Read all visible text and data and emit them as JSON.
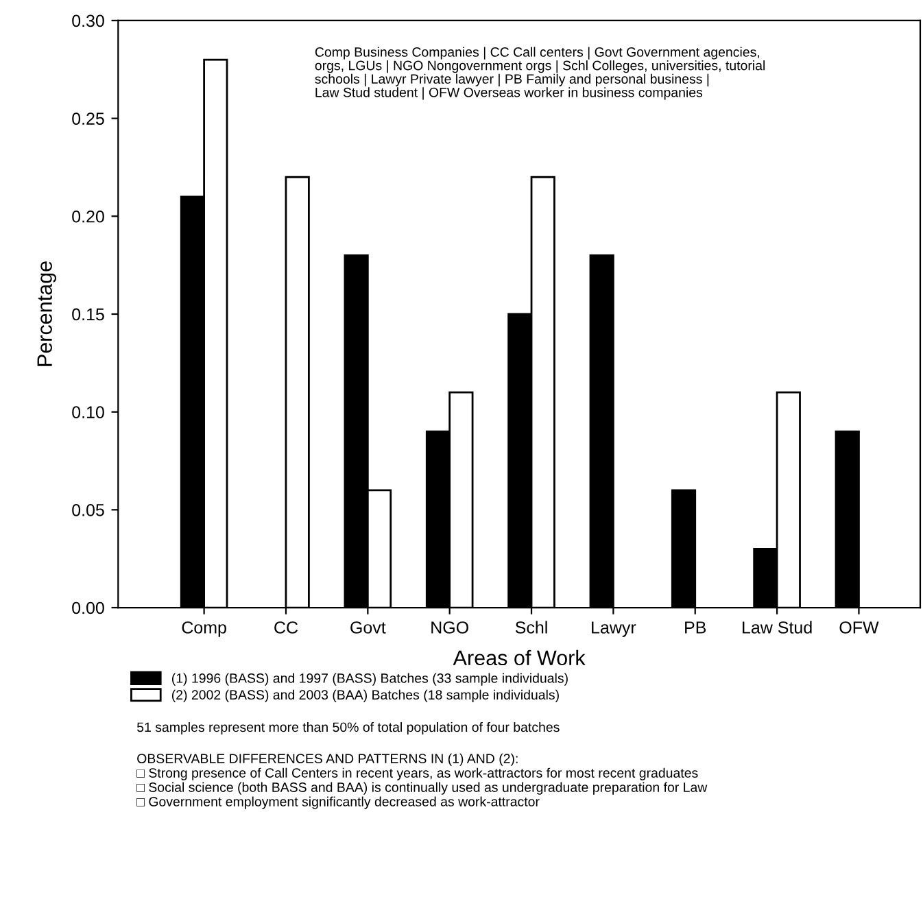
{
  "chart_data": {
    "type": "bar",
    "xlabel": "Areas of Work",
    "ylabel": "Percentage",
    "categories": [
      "Comp",
      "CC",
      "Govt",
      "NGO",
      "Schl",
      "Lawyr",
      "PB",
      "Law Stud",
      "OFW"
    ],
    "series": [
      {
        "name": "(1) 1996 (BASS) and 1997 (BASS) Batches (33 sample individuals)",
        "color": "#000000",
        "values": [
          0.21,
          null,
          0.18,
          0.09,
          0.15,
          0.18,
          0.06,
          0.03,
          0.09
        ]
      },
      {
        "name": "(2) 2002 (BASS) and 2003 (BAA) Batches (18 sample individuals)",
        "color": "#ffffff",
        "values": [
          0.28,
          0.22,
          0.06,
          0.11,
          0.22,
          null,
          null,
          0.11,
          null
        ]
      }
    ],
    "ylim": [
      0,
      0.3
    ],
    "yticks": [
      {
        "value": 0,
        "label": "0.00"
      },
      {
        "value": 0.05,
        "label": "0.05"
      },
      {
        "value": 0.1,
        "label": "0.10"
      },
      {
        "value": 0.15,
        "label": "0.15"
      },
      {
        "value": 0.2,
        "label": "0.20"
      },
      {
        "value": 0.25,
        "label": "0.25"
      },
      {
        "value": 0.3,
        "label": "0.30"
      }
    ],
    "grid": false,
    "legend": "bottom",
    "annotations": [
      "Comp Business Companies | CC Call centers | Govt Government agencies,\norgs, LGUs | NGO Nongovernment orgs | Schl Colleges, universities, tutorial\nschools | Lawyr Private lawyer | PB Family and personal business |\nLaw Stud student | OFW Overseas worker in business companies",
      "51 samples represent more than 50% of total population of four batches",
      "OBSERVABLE DIFFERENCES AND PATTERNS IN (1) AND (2):\n□ Strong presence of Call Centers in recent years, as work-attractors for most recent graduates\n□ Social science (both BASS and BAA) is continually used as undergraduate preparation for Law\n□ Government employment significantly decreased as work-attractor"
    ]
  }
}
